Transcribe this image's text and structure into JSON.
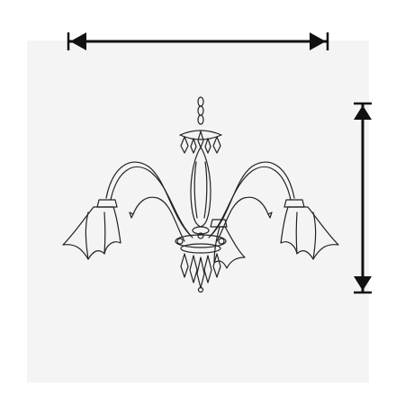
{
  "figure": {
    "subject_icon": "chandelier-icon",
    "width_indicator_icon": "double-arrow-horizontal-icon",
    "height_indicator_icon": "double-arrow-vertical-icon"
  },
  "colors": {
    "line": "#111111",
    "backdrop": "#f4f4f4",
    "background": "#ffffff"
  }
}
